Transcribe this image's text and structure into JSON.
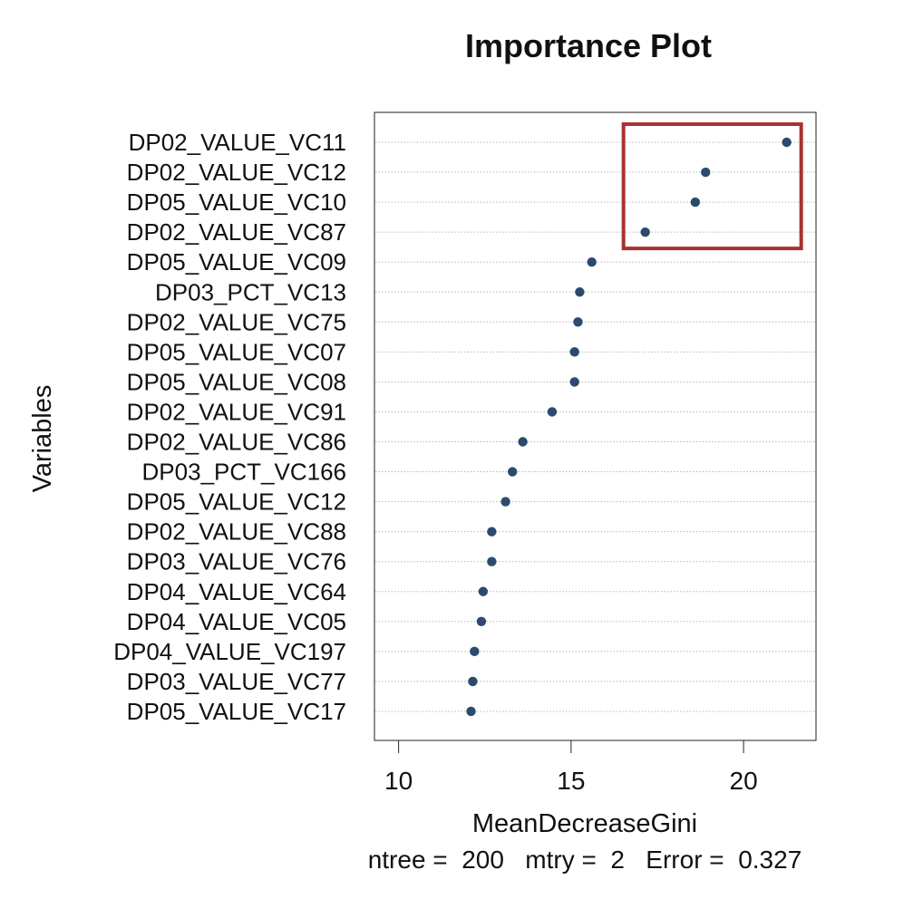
{
  "chart_data": {
    "type": "scatter",
    "title": "Importance Plot",
    "xlabel": "MeanDecreaseGini",
    "ylabel": "Variables",
    "subtitle": "ntree =  200   mtry =  2   Error =  0.327",
    "xlim": [
      9.3,
      22.1
    ],
    "x_ticks": [
      10,
      15,
      20
    ],
    "grid": "dotted horizontal lines per variable",
    "categories": [
      "DP02_VALUE_VC11",
      "DP02_VALUE_VC12",
      "DP05_VALUE_VC10",
      "DP02_VALUE_VC87",
      "DP05_VALUE_VC09",
      "DP03_PCT_VC13",
      "DP02_VALUE_VC75",
      "DP05_VALUE_VC07",
      "DP05_VALUE_VC08",
      "DP02_VALUE_VC91",
      "DP02_VALUE_VC86",
      "DP03_PCT_VC166",
      "DP05_VALUE_VC12",
      "DP02_VALUE_VC88",
      "DP03_VALUE_VC76",
      "DP04_VALUE_VC64",
      "DP04_VALUE_VC05",
      "DP04_VALUE_VC197",
      "DP03_VALUE_VC77",
      "DP05_VALUE_VC17"
    ],
    "values": [
      21.25,
      18.9,
      18.6,
      17.15,
      15.6,
      15.25,
      15.2,
      15.1,
      15.1,
      14.45,
      13.6,
      13.3,
      13.1,
      12.7,
      12.7,
      12.45,
      12.4,
      12.2,
      12.15,
      12.1
    ],
    "highlight": {
      "categories": [
        "DP02_VALUE_VC11",
        "DP02_VALUE_VC12",
        "DP05_VALUE_VC10",
        "DP02_VALUE_VC87"
      ],
      "color": "#a83232"
    },
    "point_color": "#2b4a6e"
  }
}
